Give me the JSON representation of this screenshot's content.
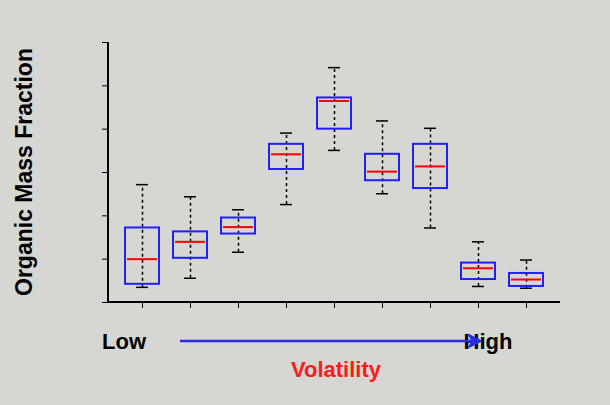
{
  "chart_data": {
    "type": "box",
    "y_label": "Organic Mass Fraction",
    "x_label": "Volatility",
    "annotations": [
      "Low",
      "High"
    ],
    "categories": [
      null,
      null,
      null,
      null,
      null,
      null,
      null,
      null,
      null
    ],
    "min": [
      0.35,
      0.56,
      1.16,
      2.26,
      3.51,
      2.51,
      1.72,
      0.37,
      0.33
    ],
    "q1": [
      0.42,
      1.02,
      1.58,
      3.07,
      4.0,
      2.81,
      2.63,
      0.53,
      0.37
    ],
    "median": [
      1.0,
      1.4,
      1.74,
      3.42,
      4.65,
      3.02,
      3.14,
      0.79,
      0.53
    ],
    "q3": [
      1.72,
      1.63,
      1.95,
      3.65,
      4.72,
      3.42,
      3.65,
      0.91,
      0.67
    ],
    "max": [
      2.72,
      2.44,
      2.14,
      3.91,
      5.42,
      4.19,
      4.02,
      1.4,
      0.98
    ],
    "color": "#1f1fff",
    "ylim": [
      0,
      6
    ],
    "yticks": [
      0,
      1,
      2,
      3,
      4,
      5,
      6
    ],
    "tick_labels": false
  }
}
